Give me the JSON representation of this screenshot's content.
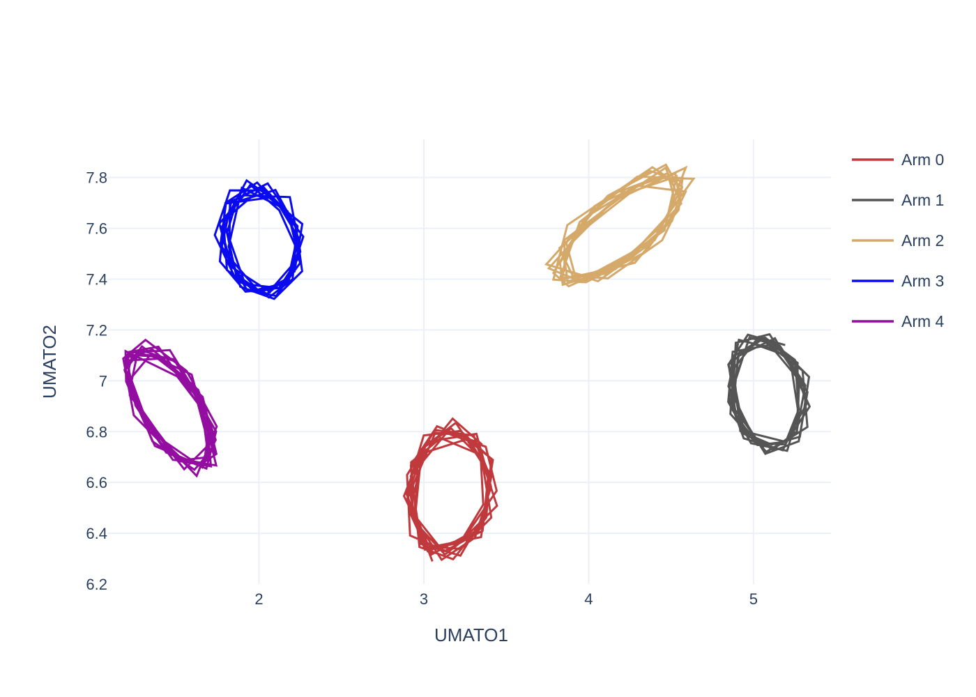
{
  "chart_data": {
    "type": "line",
    "title": "",
    "xlabel": "UMATO1",
    "ylabel": "UMATO2",
    "xlim": [
      1.08,
      5.47
    ],
    "ylim": [
      6.2,
      7.95
    ],
    "x_ticks": [
      "2",
      "3",
      "4",
      "5"
    ],
    "x_tick_values": [
      2,
      3,
      4,
      5
    ],
    "y_ticks": [
      "6.2",
      "6.4",
      "6.6",
      "6.8",
      "7",
      "7.2",
      "7.4",
      "7.6",
      "7.8"
    ],
    "y_tick_values": [
      6.2,
      6.4,
      6.6,
      6.8,
      7.0,
      7.2,
      7.4,
      7.6,
      7.8
    ],
    "grid": true,
    "legend_position": "top-right",
    "series": [
      {
        "name": "Arm 0",
        "color": "#c0393d",
        "center": [
          3.16,
          6.57
        ],
        "radius_x": 0.26,
        "radius_y": 0.24,
        "tilt_deg": 40,
        "loops": 10
      },
      {
        "name": "Arm 1",
        "color": "#555555",
        "center": [
          5.08,
          6.95
        ],
        "radius_x": 0.21,
        "radius_y": 0.24,
        "tilt_deg": 55,
        "loops": 10
      },
      {
        "name": "Arm 2",
        "color": "#d4a96a",
        "center": [
          4.19,
          7.6
        ],
        "radius_x": 0.42,
        "radius_y": 0.14,
        "tilt_deg": 25,
        "loops": 10
      },
      {
        "name": "Arm 3",
        "color": "#0a0aee",
        "center": [
          2.01,
          7.55
        ],
        "radius_x": 0.21,
        "radius_y": 0.24,
        "tilt_deg": 75,
        "loops": 10
      },
      {
        "name": "Arm 4",
        "color": "#930ea0",
        "center": [
          1.46,
          6.9
        ],
        "radius_x": 0.33,
        "radius_y": 0.15,
        "tilt_deg": -38,
        "loops": 10
      }
    ]
  }
}
